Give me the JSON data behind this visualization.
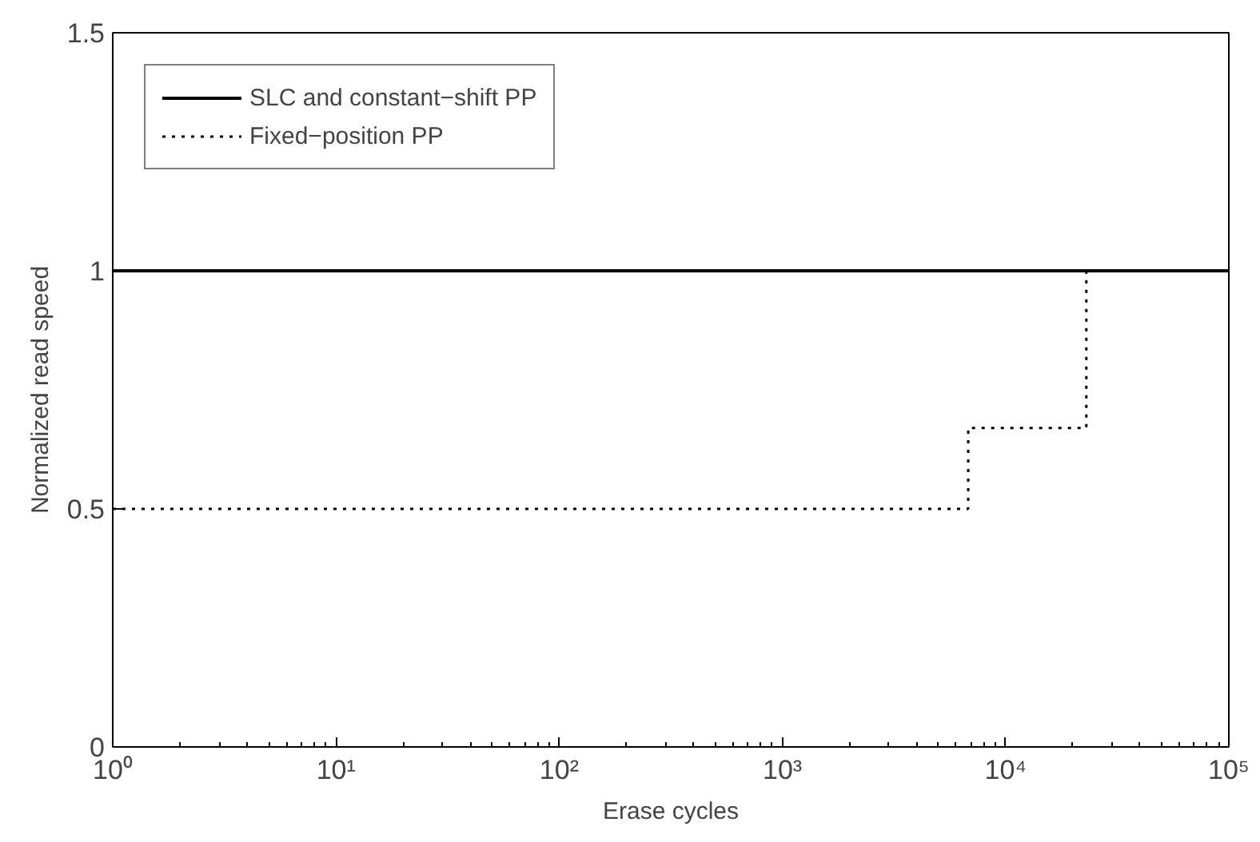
{
  "chart_data": {
    "type": "line",
    "xlabel": "Erase cycles",
    "ylabel": "Normalized read speed",
    "log": "x",
    "xlim": [
      1,
      100000
    ],
    "ylim": [
      0,
      1.5
    ],
    "xticks": [
      {
        "value": 1,
        "label": "10⁰"
      },
      {
        "value": 10,
        "label": "10¹"
      },
      {
        "value": 100,
        "label": "10²"
      },
      {
        "value": 1000,
        "label": "10³"
      },
      {
        "value": 10000,
        "label": "10⁴"
      },
      {
        "value": 100000,
        "label": "10⁵"
      }
    ],
    "yticks": [
      0,
      0.5,
      1,
      1.5
    ],
    "grid": false,
    "legend": "top left",
    "series": [
      {
        "name": "SLC and constant−shift PP",
        "color": "#000000",
        "line_style": "solid",
        "x": [
          1,
          100000
        ],
        "values": [
          1,
          1
        ]
      },
      {
        "name": "Fixed−position PP",
        "color": "#000000",
        "type": "step",
        "line_style": "dotted",
        "x": [
          1,
          6800,
          23000,
          100000
        ],
        "values": [
          0.5,
          0.67,
          1,
          1
        ]
      }
    ]
  }
}
